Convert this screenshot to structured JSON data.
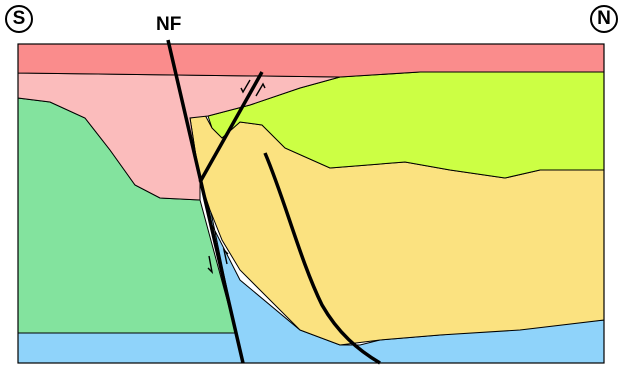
{
  "labels": {
    "south": "S",
    "north": "N",
    "fault": "NF"
  },
  "colors": {
    "top_layer": "#fa8c8c",
    "pink_layer": "#fbbcbc",
    "lime_layer": "#ccff44",
    "yellow_layer": "#fbe280",
    "green_layer": "#83e39e",
    "blue_layer": "#8fd3fa",
    "line": "#000000"
  }
}
